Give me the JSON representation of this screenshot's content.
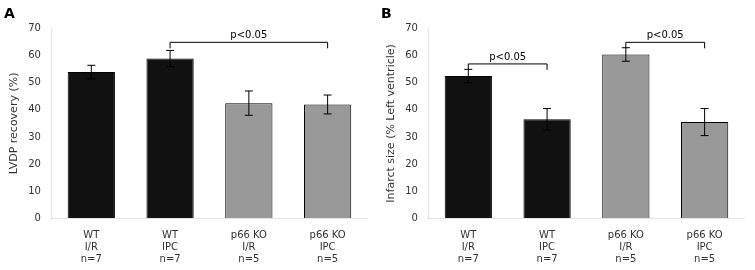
{
  "chart_data": [
    {
      "type": "bar",
      "title": "A",
      "ylabel": "LVDP recovery (%)",
      "categories": [
        "WT\nI/R\nn=7",
        "WT\nIPC\nn=7",
        "p66 KO\nI/R\nn=5",
        "p66 KO\nIPC\nn=5"
      ],
      "values": [
        54,
        59,
        42.5,
        42
      ],
      "errors": [
        2.5,
        3,
        4.5,
        3.5
      ],
      "colors": [
        "#111111",
        "#111111",
        "#999999",
        "#999999"
      ],
      "ylim": [
        0,
        70
      ],
      "yticks": [
        0,
        10,
        20,
        30,
        40,
        50,
        60,
        70
      ],
      "grid": false,
      "annotations": [
        {
          "between": [
            "WT\nIPC\nn=7",
            "p66 KO\nIPC\nn=5"
          ],
          "y": 65,
          "text": "p<0.05"
        }
      ]
    },
    {
      "type": "bar",
      "title": "B",
      "ylabel": "Infarct size (% Left ventricle)",
      "categories": [
        "WT\nI/R\nn=7",
        "WT\nIPC\nn=7",
        "p66 KO\nI/R\nn=5",
        "p66 KO\nIPC\nn=5"
      ],
      "values": [
        52.5,
        36.5,
        60.5,
        35.5
      ],
      "errors": [
        2.5,
        4,
        2.5,
        5
      ],
      "colors": [
        "#111111",
        "#111111",
        "#999999",
        "#999999"
      ],
      "ylim": [
        0,
        70
      ],
      "yticks": [
        0,
        10,
        20,
        30,
        40,
        50,
        60,
        70
      ],
      "grid": false,
      "annotations": [
        {
          "between": [
            "WT\nI/R\nn=7",
            "WT\nIPC\nn=7"
          ],
          "y": 57,
          "text": "p<0.05"
        },
        {
          "between": [
            "p66 KO\nI/R\nn=5",
            "p66 KO\nIPC\nn=5"
          ],
          "y": 65,
          "text": "p<0.05"
        }
      ]
    }
  ]
}
